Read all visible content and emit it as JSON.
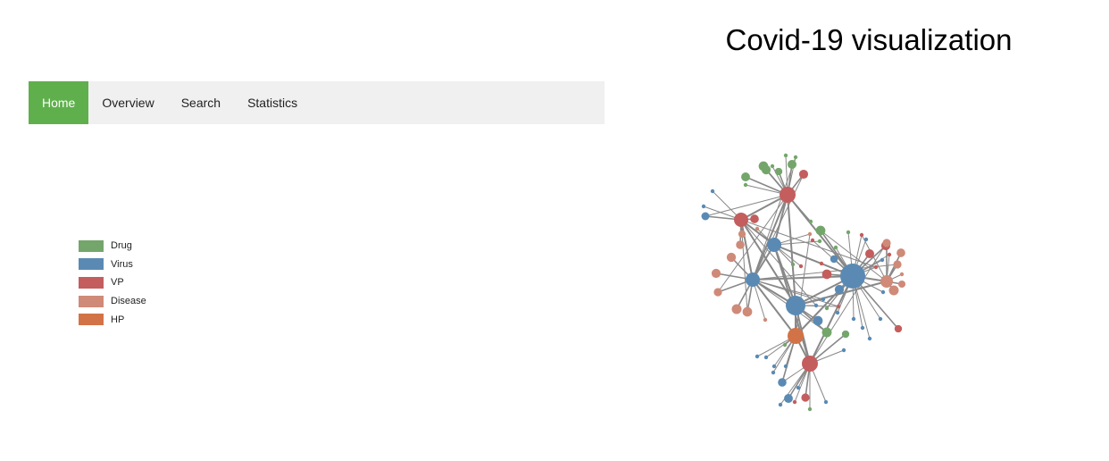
{
  "title": "Covid-19 visualization",
  "nav": {
    "items": [
      {
        "label": "Home",
        "active": true
      },
      {
        "label": "Overview",
        "active": false
      },
      {
        "label": "Search",
        "active": false
      },
      {
        "label": "Statistics",
        "active": false
      }
    ]
  },
  "legend": {
    "items": [
      {
        "label": "Drug",
        "color": "#74a66b"
      },
      {
        "label": "Virus",
        "color": "#5a8ab4"
      },
      {
        "label": "VP",
        "color": "#c45d5d"
      },
      {
        "label": "Disease",
        "color": "#cf8a78"
      },
      {
        "label": "HP",
        "color": "#d27347"
      }
    ]
  }
}
